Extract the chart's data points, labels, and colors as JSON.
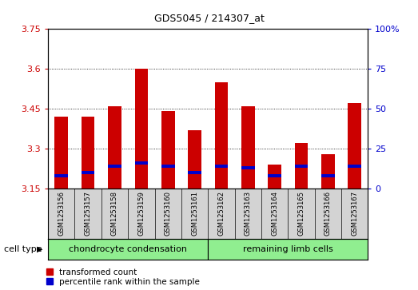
{
  "title": "GDS5045 / 214307_at",
  "samples": [
    "GSM1253156",
    "GSM1253157",
    "GSM1253158",
    "GSM1253159",
    "GSM1253160",
    "GSM1253161",
    "GSM1253162",
    "GSM1253163",
    "GSM1253164",
    "GSM1253165",
    "GSM1253166",
    "GSM1253167"
  ],
  "transformed_count": [
    3.42,
    3.42,
    3.46,
    3.6,
    3.44,
    3.37,
    3.55,
    3.46,
    3.24,
    3.32,
    3.28,
    3.47
  ],
  "percentile_rank": [
    8,
    10,
    14,
    16,
    14,
    10,
    14,
    13,
    8,
    14,
    8,
    14
  ],
  "y_min": 3.15,
  "y_max": 3.75,
  "y_ticks": [
    3.15,
    3.3,
    3.45,
    3.6,
    3.75
  ],
  "right_y_ticks": [
    0,
    25,
    50,
    75,
    100
  ],
  "right_y_labels": [
    "0",
    "25",
    "50",
    "75",
    "100%"
  ],
  "bar_color_red": "#cc0000",
  "bar_color_blue": "#0000cc",
  "cell_type_groups": [
    {
      "label": "chondrocyte condensation",
      "start": 0,
      "end": 6,
      "color": "#90ee90"
    },
    {
      "label": "remaining limb cells",
      "start": 6,
      "end": 12,
      "color": "#90ee90"
    }
  ],
  "cell_type_label": "cell type",
  "legend_red": "transformed count",
  "legend_blue": "percentile rank within the sample",
  "bg_color": "#d3d3d3",
  "plot_bg": "#ffffff",
  "left_tick_color": "#cc0000",
  "right_tick_color": "#0000cc",
  "bar_width": 0.5
}
